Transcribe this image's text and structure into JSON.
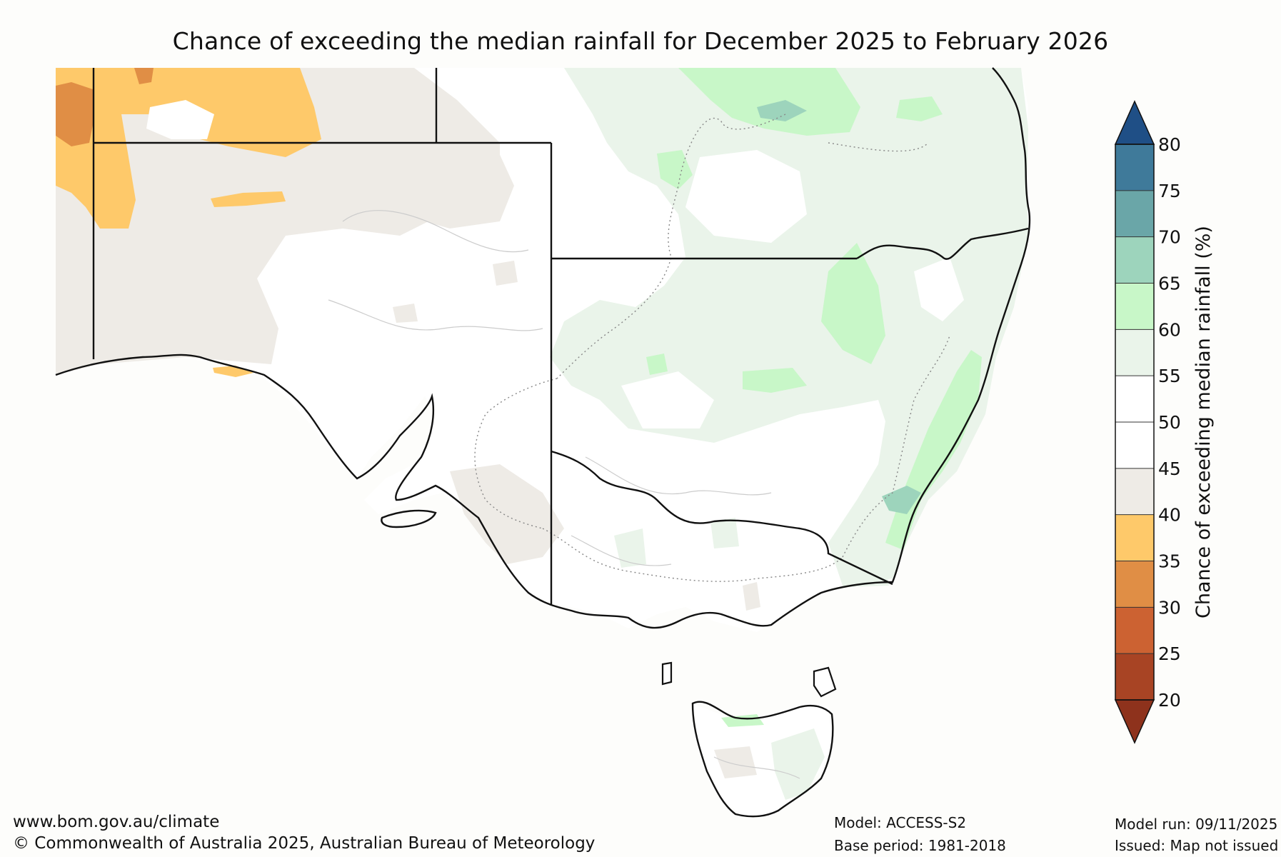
{
  "title": "Chance of exceeding the median rainfall for December 2025 to February 2026",
  "colorbar": {
    "label": "Chance of exceeding median rainfall (%)",
    "ticks": [
      "20",
      "25",
      "30",
      "35",
      "40",
      "45",
      "50",
      "55",
      "60",
      "65",
      "70",
      "75",
      "80"
    ],
    "min": 20,
    "max": 80,
    "bands": [
      {
        "from": 20,
        "to": 25,
        "color": "#a84424"
      },
      {
        "from": 25,
        "to": 30,
        "color": "#cc6232"
      },
      {
        "from": 30,
        "to": 35,
        "color": "#e08e45"
      },
      {
        "from": 35,
        "to": 40,
        "color": "#fec96a"
      },
      {
        "from": 40,
        "to": 45,
        "color": "#eeebe6"
      },
      {
        "from": 45,
        "to": 50,
        "color": "#ffffff"
      },
      {
        "from": 50,
        "to": 55,
        "color": "#ffffff"
      },
      {
        "from": 55,
        "to": 60,
        "color": "#eaf4ea"
      },
      {
        "from": 60,
        "to": 65,
        "color": "#c8f7c8"
      },
      {
        "from": 65,
        "to": 70,
        "color": "#9dd4bc"
      },
      {
        "from": 70,
        "to": 75,
        "color": "#6aa6a8"
      },
      {
        "from": 75,
        "to": 80,
        "color": "#3f7a9a"
      }
    ],
    "under_color": "#8e321c",
    "over_color": "#1f4f86"
  },
  "footer": {
    "website": "www.bom.gov.au/climate",
    "copyright": "© Commonwealth of Australia 2025, Australian Bureau of Meteorology",
    "model": "Model: ACCESS-S2",
    "base_period": "Base period: 1981-2018",
    "model_run": "Model run: 09/11/2025",
    "issued": "Issued: Map not issued"
  },
  "colors": {
    "coast": "#111111",
    "border": "#111111",
    "dotted_boundary": "#888888",
    "contour": "#bbbbbb"
  }
}
